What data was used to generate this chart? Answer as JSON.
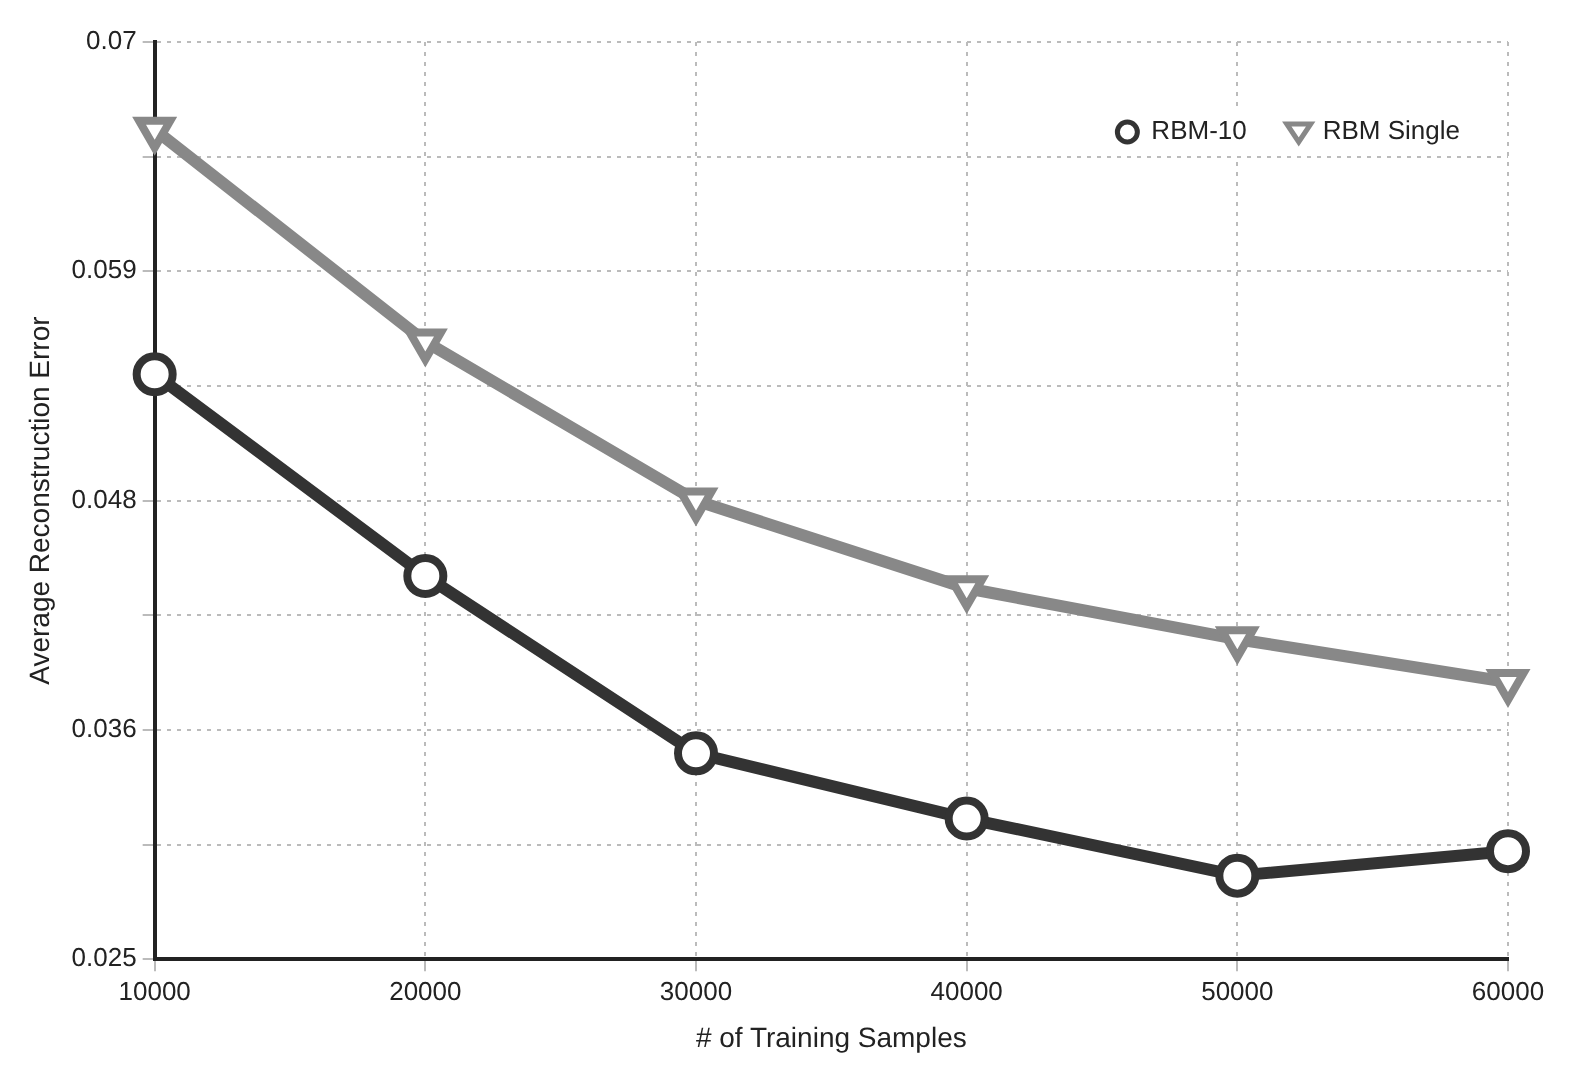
{
  "chart_data": {
    "type": "line",
    "xlabel": "# of Training Samples",
    "ylabel": "Average Reconstruction Error",
    "x": [
      10000,
      20000,
      30000,
      40000,
      50000,
      60000
    ],
    "series": [
      {
        "name": "RBM-10",
        "color": "#333333",
        "marker": "circle",
        "values": [
          0.0537,
          0.0438,
          0.0351,
          0.0319,
          0.0291,
          0.0303
        ]
      },
      {
        "name": "RBM Single",
        "color": "#888888",
        "marker": "triangle",
        "values": [
          0.0657,
          0.0553,
          0.0475,
          0.0432,
          0.0407,
          0.0386
        ]
      }
    ],
    "xlim": [
      10000,
      60000
    ],
    "xticks": [
      10000,
      20000,
      30000,
      40000,
      50000,
      60000
    ],
    "ylim": [
      0.025,
      0.07
    ],
    "yticks": [
      0.025,
      {
        "value": 0.030625,
        "label": null
      },
      {
        "value": 0.03625,
        "label": "0.036"
      },
      {
        "value": 0.041875,
        "label": null
      },
      {
        "value": 0.0475,
        "label": "0.048"
      },
      {
        "value": 0.053125,
        "label": null
      },
      {
        "value": 0.05875,
        "label": "0.059"
      },
      {
        "value": 0.064375,
        "label": null
      },
      0.07
    ],
    "grid": true,
    "legend": "top right"
  }
}
